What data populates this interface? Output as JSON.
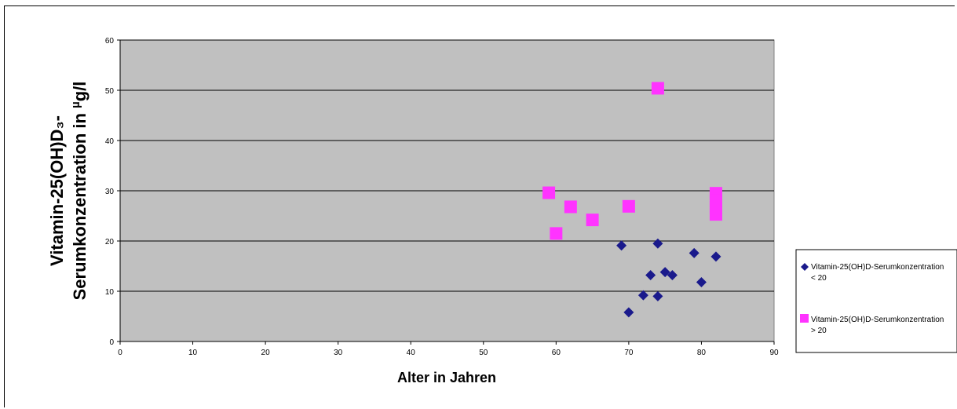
{
  "chart_data": {
    "type": "scatter",
    "title": "",
    "xlabel": "Alter in Jahren",
    "ylabel_line1": "Vitamin-25(OH)D₃-",
    "ylabel_line2_prefix": "Serumkonzentration in ",
    "ylabel_mu": "µ",
    "ylabel_unit": "g/l",
    "xlim": [
      0,
      90
    ],
    "ylim": [
      0,
      60
    ],
    "xticks": [
      0,
      10,
      20,
      30,
      40,
      50,
      60,
      70,
      80,
      90
    ],
    "yticks": [
      0,
      10,
      20,
      30,
      40,
      50,
      60
    ],
    "grid": "horizontal",
    "plot_background": "#c0c0c0",
    "legend_position": "right",
    "series": [
      {
        "name_line1": "Vitamin-25(OH)D-Serumkonzentration",
        "name_line2": "< 20",
        "marker": "diamond",
        "color": "#1a1a8c",
        "points": [
          [
            69,
            19.1
          ],
          [
            70,
            5.8
          ],
          [
            72,
            9.2
          ],
          [
            73,
            13.2
          ],
          [
            74,
            9.0
          ],
          [
            74,
            19.5
          ],
          [
            75,
            13.8
          ],
          [
            76,
            13.2
          ],
          [
            79,
            17.6
          ],
          [
            80,
            11.8
          ],
          [
            82,
            16.9
          ]
        ]
      },
      {
        "name_line1": "Vitamin-25(OH)D-Serumkonzentration",
        "name_line2": "> 20",
        "marker": "square",
        "color": "#ff33ff",
        "points": [
          [
            59,
            29.6
          ],
          [
            60,
            21.5
          ],
          [
            62,
            26.8
          ],
          [
            65,
            24.2
          ],
          [
            70,
            26.9
          ],
          [
            74,
            50.4
          ],
          [
            82,
            29.5
          ],
          [
            82,
            28.0
          ],
          [
            82,
            26.7
          ],
          [
            82,
            25.3
          ]
        ]
      }
    ]
  }
}
